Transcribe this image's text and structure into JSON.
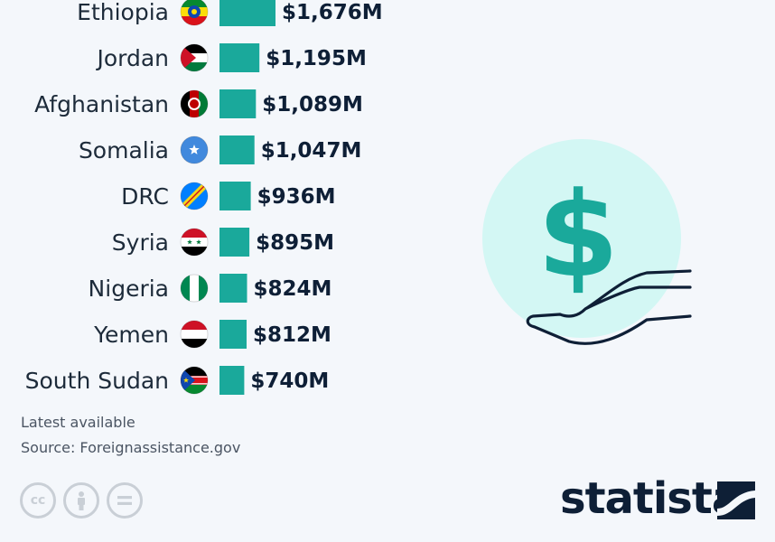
{
  "chart_data": {
    "type": "bar",
    "orientation": "horizontal",
    "categories": [
      "Ethiopia",
      "Jordan",
      "Afghanistan",
      "Somalia",
      "DRC",
      "Syria",
      "Nigeria",
      "Yemen",
      "South Sudan"
    ],
    "values": [
      1676,
      1195,
      1089,
      1047,
      936,
      895,
      824,
      812,
      740
    ],
    "value_labels": [
      "$1,676M",
      "$1,195M",
      "$1,089M",
      "$1,047M",
      "$936M",
      "$895M",
      "$824M",
      "$812M",
      "$740M"
    ],
    "bar_color": "#1aa99b",
    "title": "",
    "xlabel": "",
    "ylabel": "",
    "grid": false,
    "legend": "none"
  },
  "flags": [
    "ethiopia-flag-icon",
    "jordan-flag-icon",
    "afghanistan-flag-icon",
    "somalia-flag-icon",
    "drc-flag-icon",
    "syria-flag-icon",
    "nigeria-flag-icon",
    "yemen-flag-icon",
    "south-sudan-flag-icon"
  ],
  "footer": {
    "note": "Latest available",
    "source": "Source: Foreignassistance.gov",
    "license_icons": [
      "cc-icon",
      "attribution-icon",
      "no-derivatives-icon"
    ],
    "brand": "statista"
  },
  "illustration": {
    "icon": "dollar-in-hand-icon",
    "circle_color": "#d3f7f4",
    "symbol_color": "#1aa99b"
  }
}
